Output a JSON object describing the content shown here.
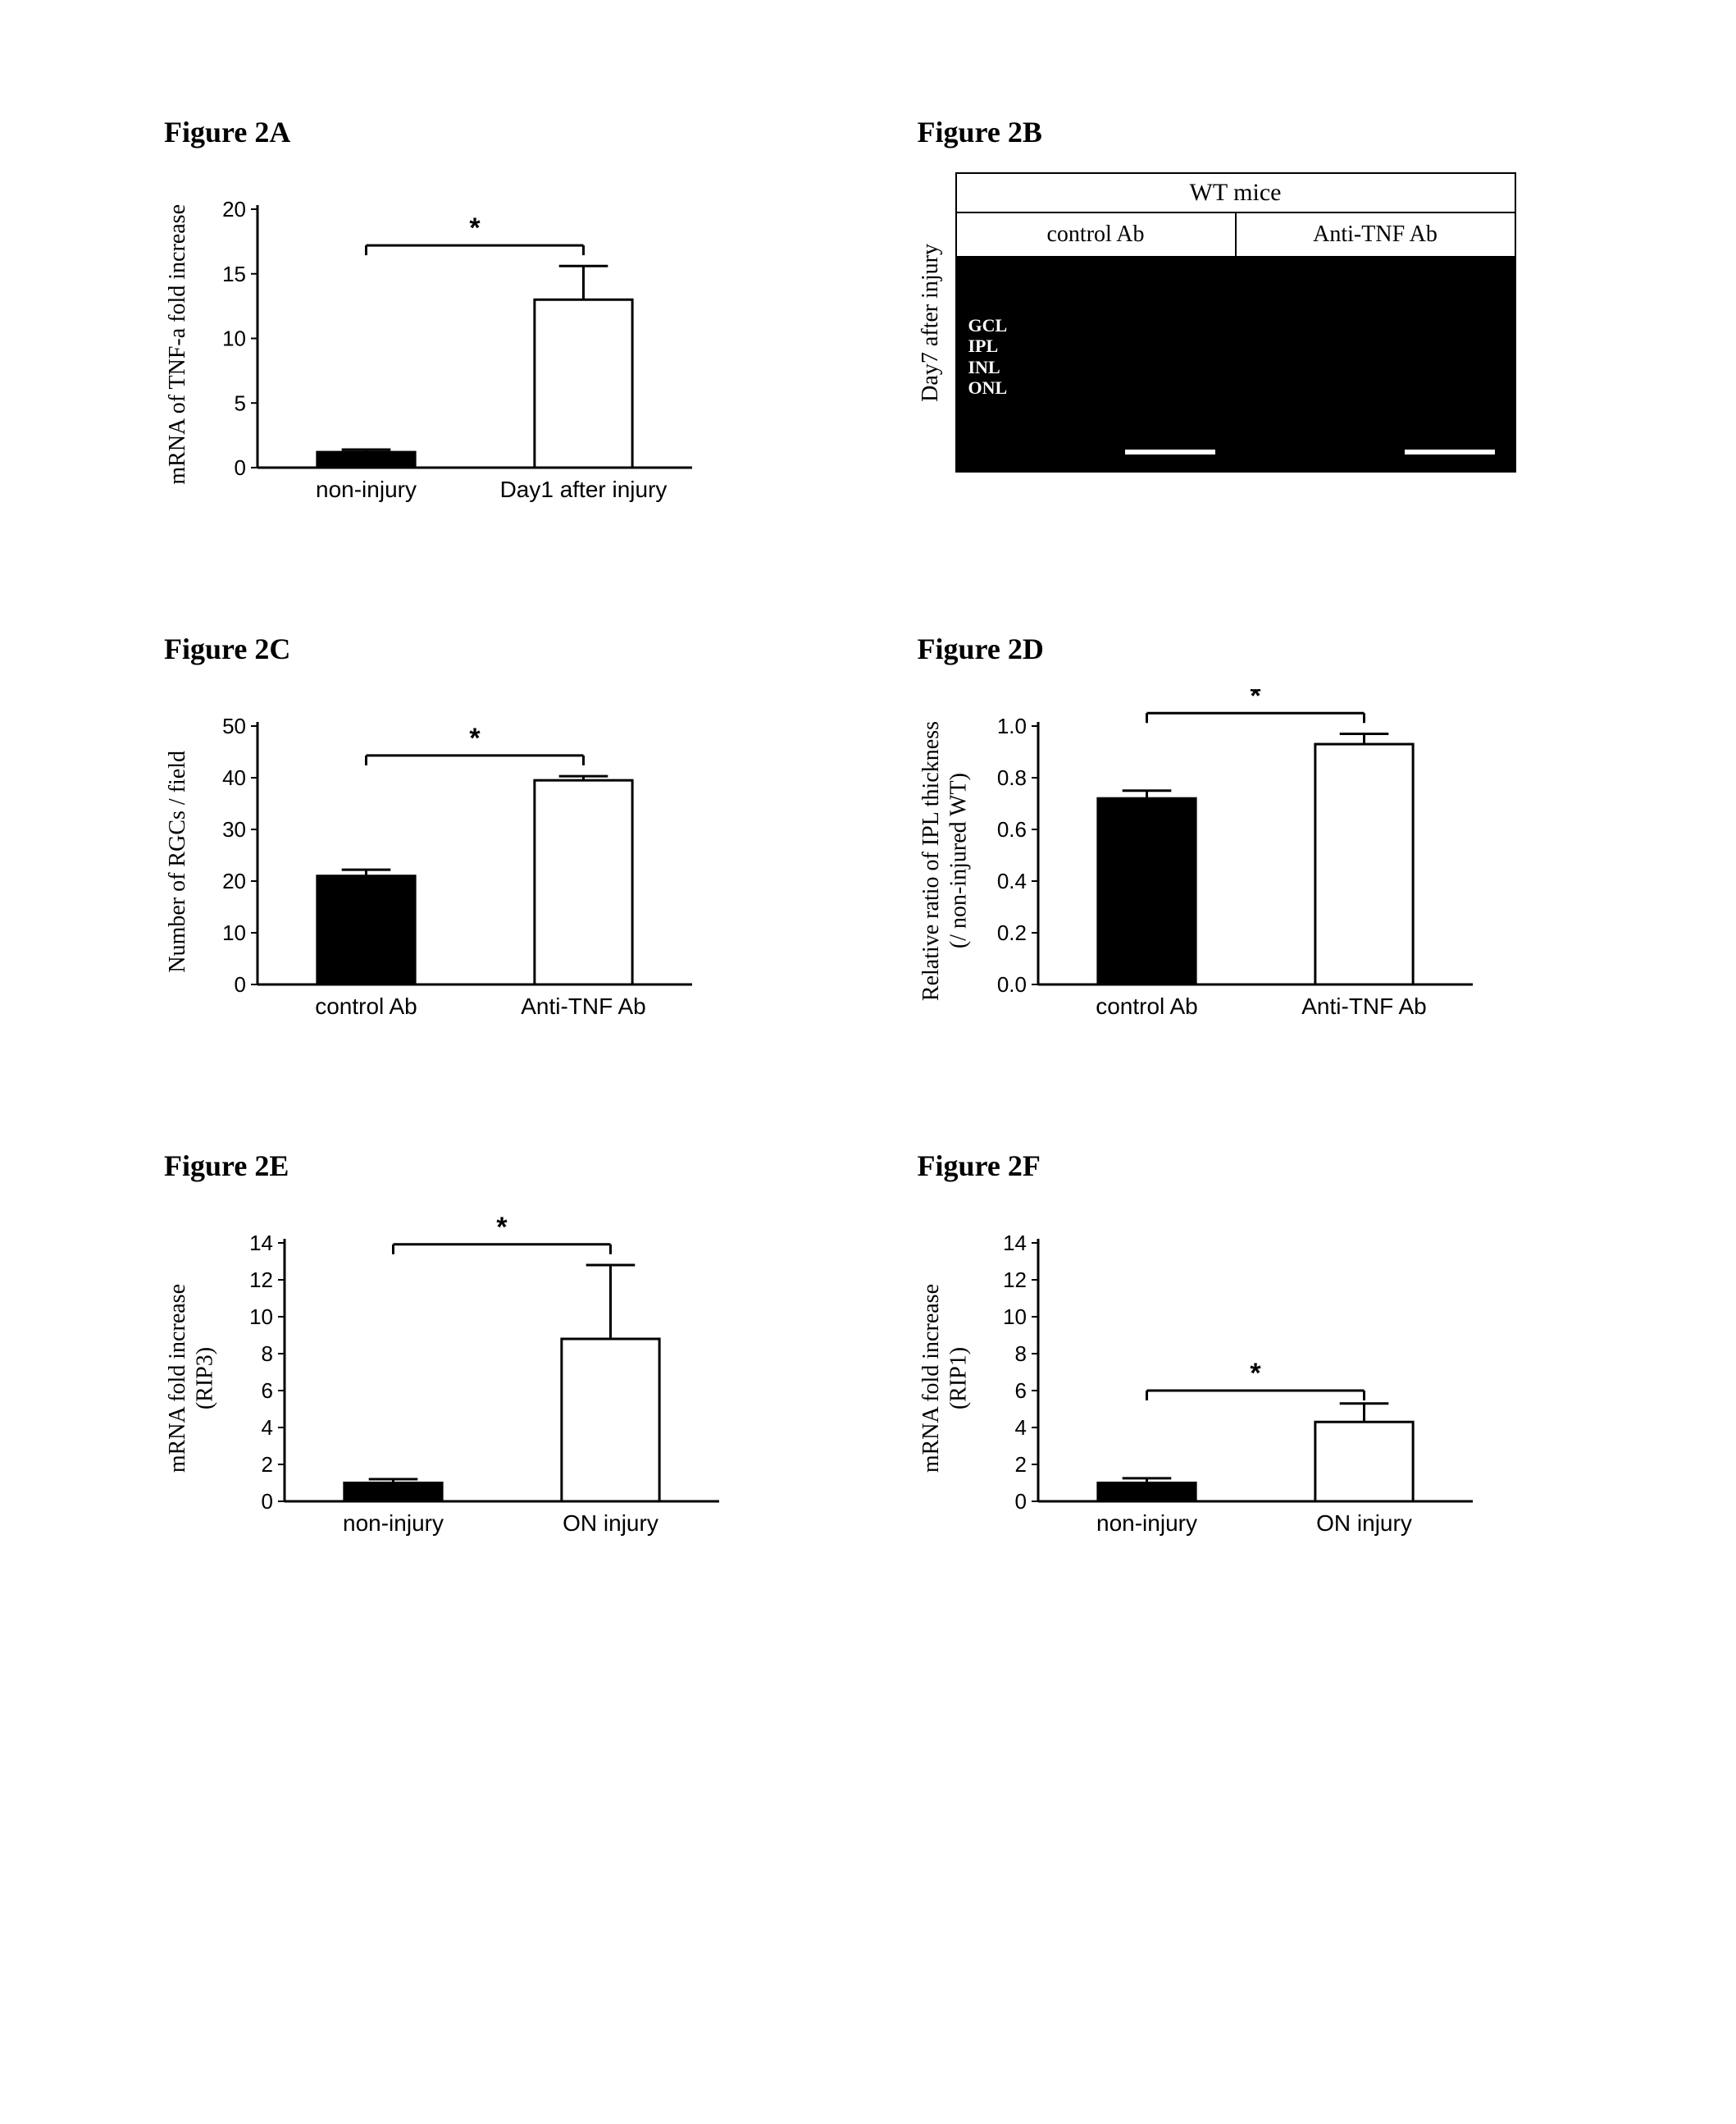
{
  "palette": {
    "filled_bar": "#000000",
    "open_bar_fill": "#ffffff",
    "open_bar_stroke": "#000000",
    "axis": "#000000",
    "bg": "#ffffff",
    "micrograph_bg": "#000000",
    "scale_bar": "#ffffff",
    "layer_text": "#ffffff"
  },
  "figure2A": {
    "title": "Figure 2A",
    "type": "bar",
    "ylabel": "mRNA of TNF-a fold increase",
    "ylim": [
      0,
      20
    ],
    "ytick_step": 5,
    "categories": [
      "non-injury",
      "Day1 after injury"
    ],
    "values": [
      1.2,
      13.0
    ],
    "errors": [
      0.2,
      2.6
    ],
    "bar_fills": [
      "#000000",
      "#ffffff"
    ],
    "bar_strokes": [
      "#000000",
      "#000000"
    ],
    "bar_width": 0.45,
    "sig_marker": "*",
    "sig_fontsize": 34
  },
  "figure2B": {
    "title": "Figure 2B",
    "type": "micrograph-pair",
    "supertitle": "WT mice",
    "columns": [
      "control Ab",
      "Anti-TNF Ab"
    ],
    "row_label": "Day7 after injury",
    "layers": [
      "GCL",
      "IPL",
      "INL",
      "ONL"
    ],
    "panel_bg": "#000000",
    "scale_bar_color": "#ffffff"
  },
  "figure2C": {
    "title": "Figure 2C",
    "type": "bar",
    "ylabel": "Number of RGCs / field",
    "ylim": [
      0,
      50
    ],
    "ytick_step": 10,
    "categories": [
      "control Ab",
      "Anti-TNF Ab"
    ],
    "values": [
      21,
      39.5
    ],
    "errors": [
      1.2,
      0.8
    ],
    "bar_fills": [
      "#000000",
      "#ffffff"
    ],
    "bar_strokes": [
      "#000000",
      "#000000"
    ],
    "bar_width": 0.45,
    "sig_marker": "*",
    "sig_fontsize": 34
  },
  "figure2D": {
    "title": "Figure 2D",
    "type": "bar",
    "ylabel": "Relative ratio of IPL thickness\n(/ non-injured WT)",
    "ylim": [
      0,
      1.0
    ],
    "ytick_step": 0.2,
    "categories": [
      "control Ab",
      "Anti-TNF Ab"
    ],
    "values": [
      0.72,
      0.93
    ],
    "errors": [
      0.03,
      0.04
    ],
    "bar_fills": [
      "#000000",
      "#ffffff"
    ],
    "bar_strokes": [
      "#000000",
      "#000000"
    ],
    "bar_width": 0.45,
    "sig_marker": "*",
    "sig_fontsize": 34
  },
  "figure2E": {
    "title": "Figure 2E",
    "type": "bar",
    "ylabel": "mRNA fold increase\n(RIP3)",
    "ylim": [
      0,
      14
    ],
    "ytick_step": 2,
    "categories": [
      "non-injury",
      "ON injury"
    ],
    "values": [
      1.0,
      8.8
    ],
    "errors": [
      0.2,
      4.0
    ],
    "bar_fills": [
      "#000000",
      "#ffffff"
    ],
    "bar_strokes": [
      "#000000",
      "#000000"
    ],
    "bar_width": 0.45,
    "sig_marker": "*",
    "sig_fontsize": 34
  },
  "figure2F": {
    "title": "Figure 2F",
    "type": "bar",
    "ylabel": "mRNA fold increase\n(RIP1)",
    "ylim": [
      0,
      14
    ],
    "ytick_step": 2,
    "categories": [
      "non-injury",
      "ON injury"
    ],
    "values": [
      1.0,
      4.3
    ],
    "errors": [
      0.25,
      1.0
    ],
    "bar_fills": [
      "#000000",
      "#ffffff"
    ],
    "bar_strokes": [
      "#000000",
      "#000000"
    ],
    "bar_width": 0.45,
    "sig_marker": "*",
    "sig_fontsize": 34,
    "sig_y": 6.0
  }
}
